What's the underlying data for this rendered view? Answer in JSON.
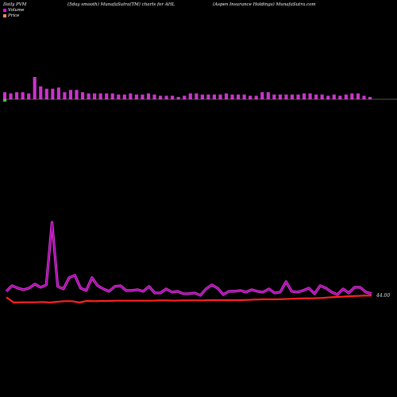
{
  "header": {
    "left": "Daily PVM",
    "center": "(5day smooth) MunafaSutra(TM) charts for AHL",
    "right": "(Aspen  Insurance  Holdings) MunafaSutra.com"
  },
  "legend": [
    {
      "label": "Volume",
      "color": "#ff00ff"
    },
    {
      "label": "Price",
      "color": "#ff8c69"
    }
  ],
  "colors": {
    "background": "#000000",
    "volume_bar": "#cc33cc",
    "volume_bar_down": "#33cc33",
    "volume_line": "#cc22cc",
    "price_line": "#ff2222",
    "baseline": "#aaaaaa"
  },
  "chart_data": {
    "type": "bar",
    "title": "(5day smooth) MunafaSutra(TM) charts for AHL",
    "price_label": "44.00",
    "series": [
      {
        "name": "Volume",
        "type": "bar",
        "values": [
          6,
          5,
          6,
          6,
          5,
          19,
          11,
          9,
          9,
          10,
          6,
          8,
          8,
          6,
          5,
          5,
          5,
          5,
          5,
          4,
          4,
          5,
          4,
          4,
          5,
          4,
          3,
          3,
          3,
          2,
          3,
          5,
          5,
          4,
          4,
          4,
          4,
          5,
          4,
          4,
          4,
          3,
          3,
          6,
          6,
          4,
          4,
          4,
          4,
          4,
          5,
          5,
          4,
          4,
          3,
          4,
          3,
          4,
          5,
          5,
          3,
          2
        ]
      },
      {
        "name": "Volume (smoothed)",
        "type": "line",
        "values": [
          10,
          17,
          14,
          12,
          14,
          19,
          15,
          18,
          96,
          16,
          13,
          27,
          30,
          14,
          11,
          27,
          17,
          13,
          10,
          16,
          17,
          11,
          11,
          12,
          10,
          16,
          8,
          8,
          13,
          9,
          10,
          7,
          7,
          8,
          5,
          13,
          18,
          14,
          6,
          10,
          10,
          11,
          9,
          12,
          10,
          9,
          13,
          8,
          9,
          22,
          10,
          9,
          11,
          14,
          7,
          17,
          14,
          9,
          6,
          13,
          8,
          15,
          15,
          9,
          7
        ]
      },
      {
        "name": "Price",
        "type": "line",
        "values": [
          43.5,
          41.5,
          41.6,
          41.6,
          41.6,
          41.7,
          41.5,
          41.8,
          42,
          42,
          41.5,
          42.1,
          42,
          42.1,
          42.1,
          42.2,
          42.2,
          42.2,
          42.2,
          42.2,
          42.2,
          42.3,
          42.3,
          42.2,
          42.3,
          42.3,
          42.3,
          42.3,
          42.4,
          42.4,
          42.4,
          42.4,
          42.4,
          42.5,
          42.6,
          42.7,
          42.7,
          42.7,
          42.8,
          42.9,
          43,
          43.1,
          43.1,
          43.2,
          43.4,
          43.6,
          43.7,
          43.9,
          44,
          44.1,
          44.1
        ]
      }
    ]
  }
}
